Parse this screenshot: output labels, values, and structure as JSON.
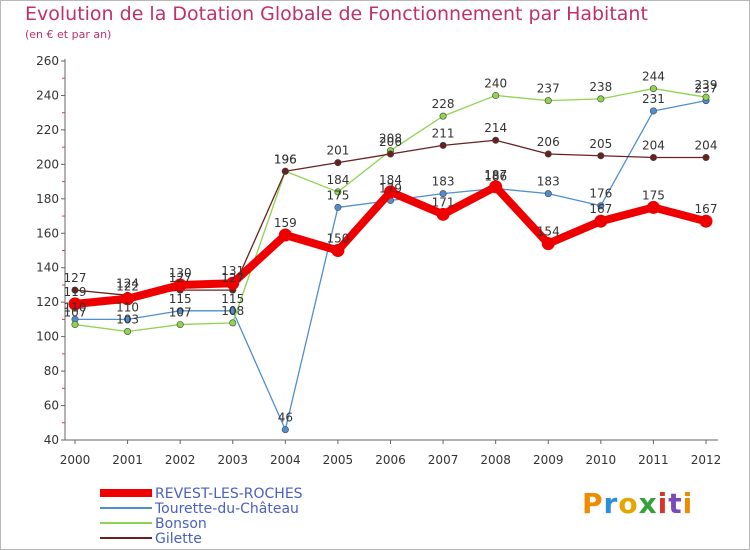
{
  "header": {
    "title": "Evolution de la Dotation Globale de Fonctionnement par Habitant",
    "subtitle": "(en € et par an)"
  },
  "logo": {
    "text": "Proxiti"
  },
  "chart_data": {
    "type": "line",
    "title": "Evolution de la Dotation Globale de Fonctionnement par Habitant",
    "subtitle": "(en € et par an)",
    "xlabel": "",
    "ylabel": "",
    "x": [
      "2000",
      "2001",
      "2002",
      "2003",
      "2004",
      "2005",
      "2006",
      "2007",
      "2008",
      "2009",
      "2010",
      "2011",
      "2012"
    ],
    "ylim": [
      40,
      260
    ],
    "yticks": [
      40,
      60,
      80,
      100,
      120,
      140,
      160,
      180,
      200,
      220,
      240,
      260
    ],
    "grid": false,
    "legend_position": "bottom-left",
    "series": [
      {
        "name": "REVEST-LES-ROCHES",
        "color": "#ee0000",
        "emphasis": true,
        "values": [
          119,
          122,
          130,
          131,
          159,
          150,
          184,
          171,
          187,
          154,
          167,
          175,
          167
        ]
      },
      {
        "name": "Tourette-du-Château",
        "color": "#4f8fd0",
        "emphasis": false,
        "values": [
          110,
          110,
          115,
          115,
          46,
          175,
          179,
          183,
          186,
          183,
          176,
          231,
          237
        ]
      },
      {
        "name": "Bonson",
        "color": "#8ed450",
        "emphasis": false,
        "values": [
          107,
          103,
          107,
          108,
          196,
          184,
          208,
          228,
          240,
          237,
          238,
          244,
          239
        ]
      },
      {
        "name": "Gilette",
        "color": "#6b2020",
        "emphasis": false,
        "values": [
          127,
          124,
          127,
          127,
          196,
          201,
          206,
          211,
          214,
          206,
          205,
          204,
          204
        ]
      }
    ]
  }
}
